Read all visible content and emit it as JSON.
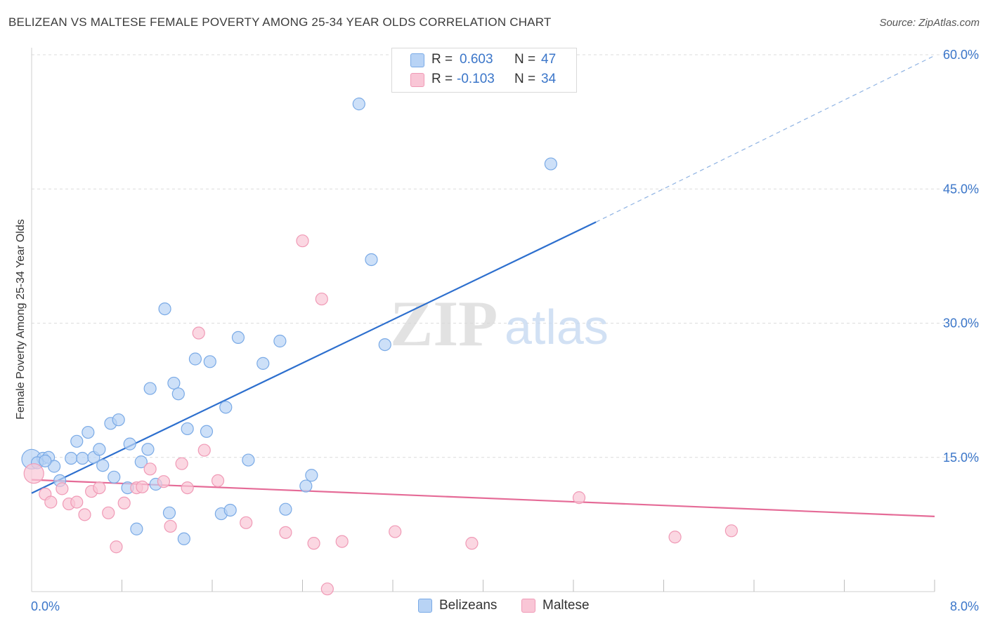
{
  "title": "BELIZEAN VS MALTESE FEMALE POVERTY AMONG 25-34 YEAR OLDS CORRELATION CHART",
  "source": "Source: ZipAtlas.com",
  "watermark": {
    "zip": "ZIP",
    "atlas": "atlas"
  },
  "legend": {
    "belizeans": {
      "r_label": "R =",
      "r_value": "0.603",
      "n_label": "N =",
      "n_value": "47"
    },
    "maltese": {
      "r_label": "R =",
      "r_value": "-0.103",
      "n_label": "N =",
      "n_value": "34"
    }
  },
  "colors": {
    "belizeans_fill": "#b8d3f5",
    "belizeans_stroke": "#7aaae6",
    "belizeans_line": "#2d6fce",
    "maltese_fill": "#f9c6d6",
    "maltese_stroke": "#f09ab6",
    "maltese_line": "#e56b97",
    "tick_text": "#3b76c9",
    "grid": "#dcdcdc"
  },
  "chart_data": {
    "type": "scatter",
    "ylabel": "Female Poverty Among 25-34 Year Olds",
    "xlim": [
      0,
      8
    ],
    "ylim": [
      0,
      60
    ],
    "x_tick_labels": [
      {
        "value": 0,
        "label": "0.0%"
      },
      {
        "value": 8,
        "label": "8.0%"
      }
    ],
    "y_tick_labels": [
      {
        "value": 15,
        "label": "15.0%"
      },
      {
        "value": 30,
        "label": "30.0%"
      },
      {
        "value": 45,
        "label": "45.0%"
      },
      {
        "value": 60,
        "label": "60.0%"
      }
    ],
    "grid": true,
    "legend_position": "top-center",
    "series": [
      {
        "name": "Belizeans",
        "points": [
          [
            0.0,
            14.8
          ],
          [
            0.1,
            14.9
          ],
          [
            0.15,
            15.0
          ],
          [
            0.2,
            14.0
          ],
          [
            0.25,
            12.4
          ],
          [
            0.35,
            14.9
          ],
          [
            0.4,
            16.8
          ],
          [
            0.45,
            14.9
          ],
          [
            0.5,
            17.8
          ],
          [
            0.55,
            15.0
          ],
          [
            0.6,
            15.9
          ],
          [
            0.63,
            14.1
          ],
          [
            0.7,
            18.8
          ],
          [
            0.73,
            12.8
          ],
          [
            0.77,
            19.2
          ],
          [
            0.85,
            11.6
          ],
          [
            0.87,
            16.5
          ],
          [
            0.93,
            7.0
          ],
          [
            0.97,
            14.5
          ],
          [
            1.03,
            15.9
          ],
          [
            1.05,
            22.7
          ],
          [
            1.1,
            12.0
          ],
          [
            1.18,
            31.6
          ],
          [
            1.22,
            8.8
          ],
          [
            1.26,
            23.3
          ],
          [
            1.3,
            22.1
          ],
          [
            1.35,
            5.9
          ],
          [
            1.38,
            18.2
          ],
          [
            1.45,
            26.0
          ],
          [
            1.55,
            17.9
          ],
          [
            1.58,
            25.7
          ],
          [
            1.68,
            8.7
          ],
          [
            1.72,
            20.6
          ],
          [
            1.76,
            9.1
          ],
          [
            1.83,
            28.4
          ],
          [
            1.92,
            14.7
          ],
          [
            2.05,
            25.5
          ],
          [
            2.2,
            28.0
          ],
          [
            2.25,
            9.2
          ],
          [
            2.43,
            11.8
          ],
          [
            2.48,
            13.0
          ],
          [
            2.9,
            54.5
          ],
          [
            3.01,
            37.1
          ],
          [
            3.13,
            27.6
          ],
          [
            4.6,
            47.8
          ],
          [
            0.05,
            14.4
          ],
          [
            0.12,
            14.6
          ]
        ]
      },
      {
        "name": "Maltese",
        "points": [
          [
            0.02,
            13.2
          ],
          [
            0.12,
            10.9
          ],
          [
            0.17,
            10.0
          ],
          [
            0.27,
            11.5
          ],
          [
            0.33,
            9.8
          ],
          [
            0.4,
            10.0
          ],
          [
            0.47,
            8.6
          ],
          [
            0.53,
            11.2
          ],
          [
            0.6,
            11.6
          ],
          [
            0.68,
            8.8
          ],
          [
            0.75,
            5.0
          ],
          [
            0.82,
            9.9
          ],
          [
            0.93,
            11.6
          ],
          [
            0.98,
            11.7
          ],
          [
            1.05,
            13.7
          ],
          [
            1.17,
            12.3
          ],
          [
            1.23,
            7.3
          ],
          [
            1.33,
            14.3
          ],
          [
            1.38,
            11.6
          ],
          [
            1.48,
            28.9
          ],
          [
            1.53,
            15.8
          ],
          [
            1.65,
            12.4
          ],
          [
            1.9,
            7.7
          ],
          [
            2.25,
            6.6
          ],
          [
            2.4,
            39.2
          ],
          [
            2.5,
            5.4
          ],
          [
            2.57,
            32.7
          ],
          [
            2.75,
            5.6
          ],
          [
            3.22,
            6.7
          ],
          [
            3.9,
            5.4
          ],
          [
            4.85,
            10.5
          ],
          [
            5.7,
            6.1
          ],
          [
            6.2,
            6.8
          ],
          [
            2.62,
            0.3
          ]
        ]
      }
    ],
    "trend_lines": [
      {
        "series": "Belizeans",
        "x1": 0,
        "y1": 11.0,
        "x2": 5.0,
        "y2": 41.3,
        "dashed_extension_to": [
          8.0,
          59.9
        ]
      },
      {
        "series": "Maltese",
        "x1": 0,
        "y1": 12.5,
        "x2": 8.0,
        "y2": 8.4
      }
    ]
  }
}
